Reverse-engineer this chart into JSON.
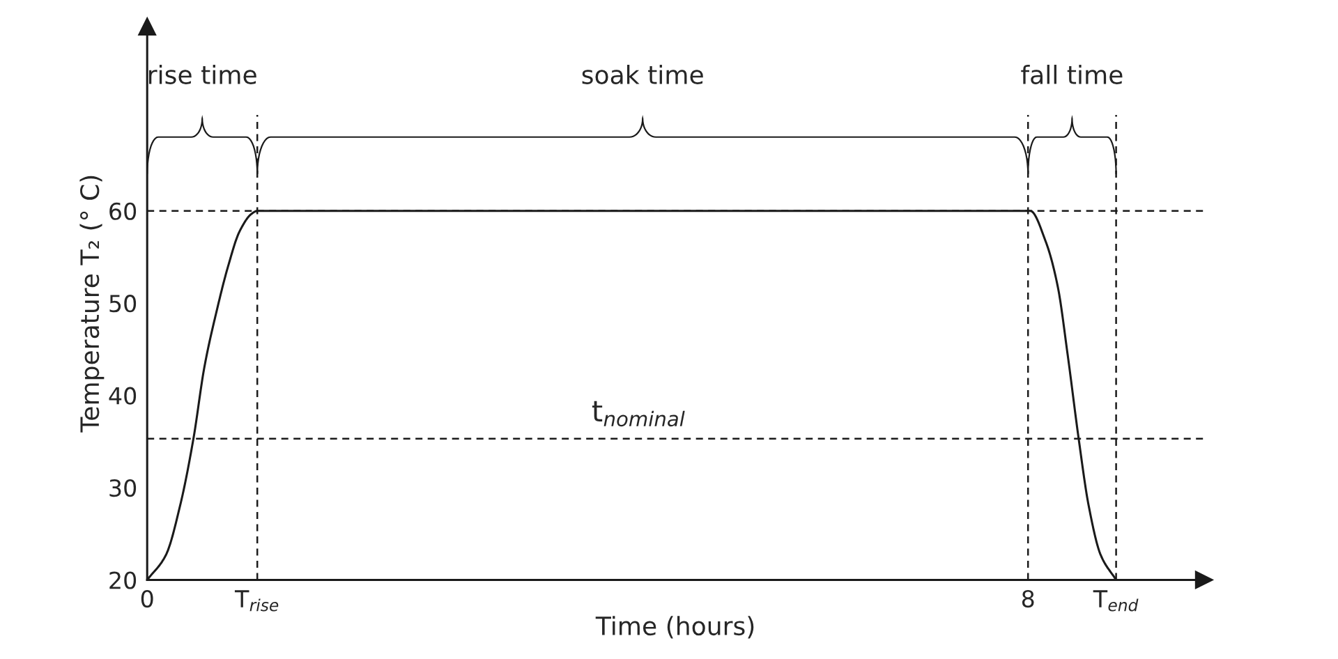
{
  "chart_data": {
    "type": "line",
    "xlabel": "Time (hours)",
    "ylabel": "Temperature T₂ (° C)",
    "x": [
      0,
      0.17,
      0.3,
      0.42,
      0.52,
      0.63,
      0.735,
      0.84,
      0.95,
      1,
      8,
      8.02,
      8.16,
      8.27,
      8.36,
      8.46,
      8.55,
      8.66,
      8.8
    ],
    "series": [
      {
        "color": "#1a1a1a",
        "values": [
          20,
          22.7,
          28.1,
          35.3,
          43.1,
          49.1,
          54,
          57.8,
          59.7,
          60,
          60,
          60,
          56.7,
          51.8,
          44.4,
          35.3,
          28.1,
          22.7,
          20
        ]
      }
    ],
    "xlim": [
      0,
      9.6
    ],
    "ylim": [
      20,
      80
    ],
    "xticks": [
      0,
      {
        "value": 1,
        "label": "T$_{rise}$"
      },
      8,
      {
        "value": 8.8,
        "label": "T$_{end}$"
      }
    ],
    "yticks": [
      20,
      30,
      40,
      50,
      60
    ],
    "ref_lines": [
      {
        "axis": "y",
        "value": 60,
        "line_style": "dashed"
      },
      {
        "axis": "y",
        "value": 35.3,
        "line_style": "dashed",
        "label": "t$_{nominal}$"
      },
      {
        "axis": "x",
        "value": 1,
        "line_style": "dashed"
      },
      {
        "axis": "x",
        "value": 8,
        "line_style": "dashed"
      },
      {
        "axis": "x",
        "value": 8.8,
        "line_style": "dashed"
      }
    ],
    "annotations": [
      "rise time",
      "soak time",
      "fall time"
    ],
    "grid": false,
    "legend": false,
    "marker": "none",
    "line_style": "solid"
  }
}
